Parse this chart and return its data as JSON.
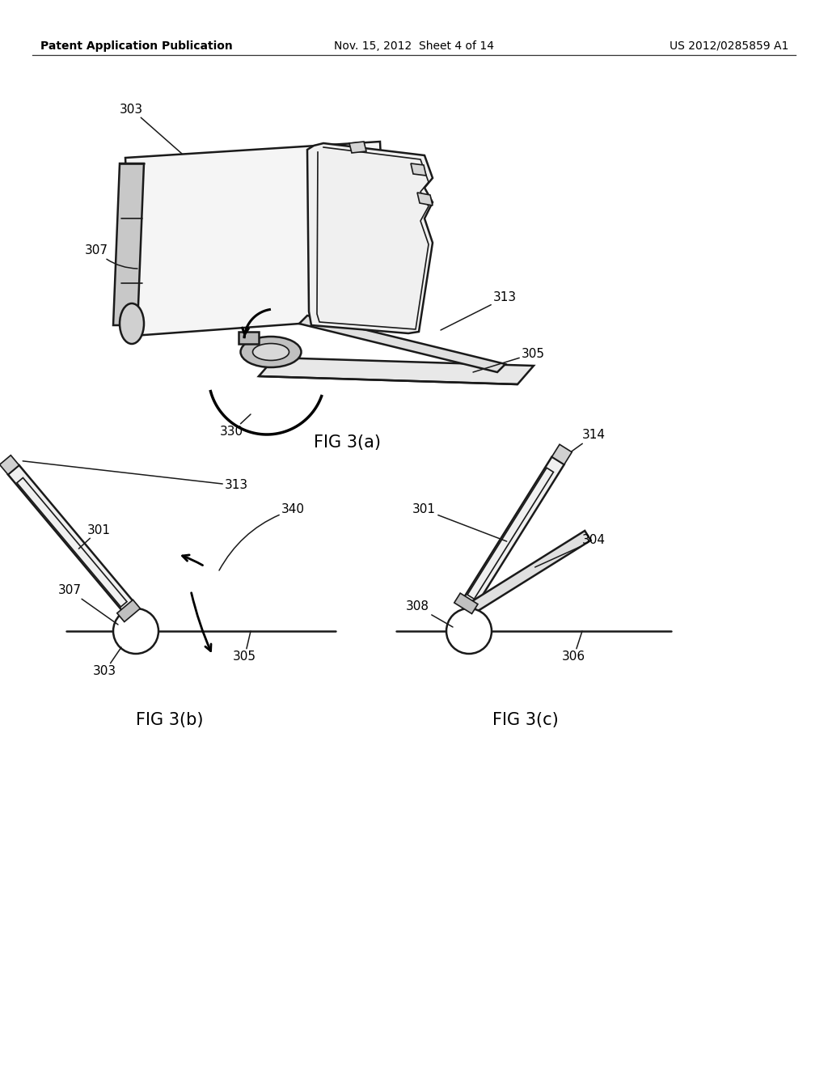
{
  "background_color": "#ffffff",
  "header_left": "Patent Application Publication",
  "header_middle": "Nov. 15, 2012  Sheet 4 of 14",
  "header_right": "US 2012/0285859 A1",
  "fig3a_label": "FIG 3(a)",
  "fig3b_label": "FIG 3(b)",
  "fig3c_label": "FIG 3(c)",
  "line_color": "#1a1a1a",
  "text_color": "#000000",
  "lw": 1.8,
  "lwd": 1.2
}
